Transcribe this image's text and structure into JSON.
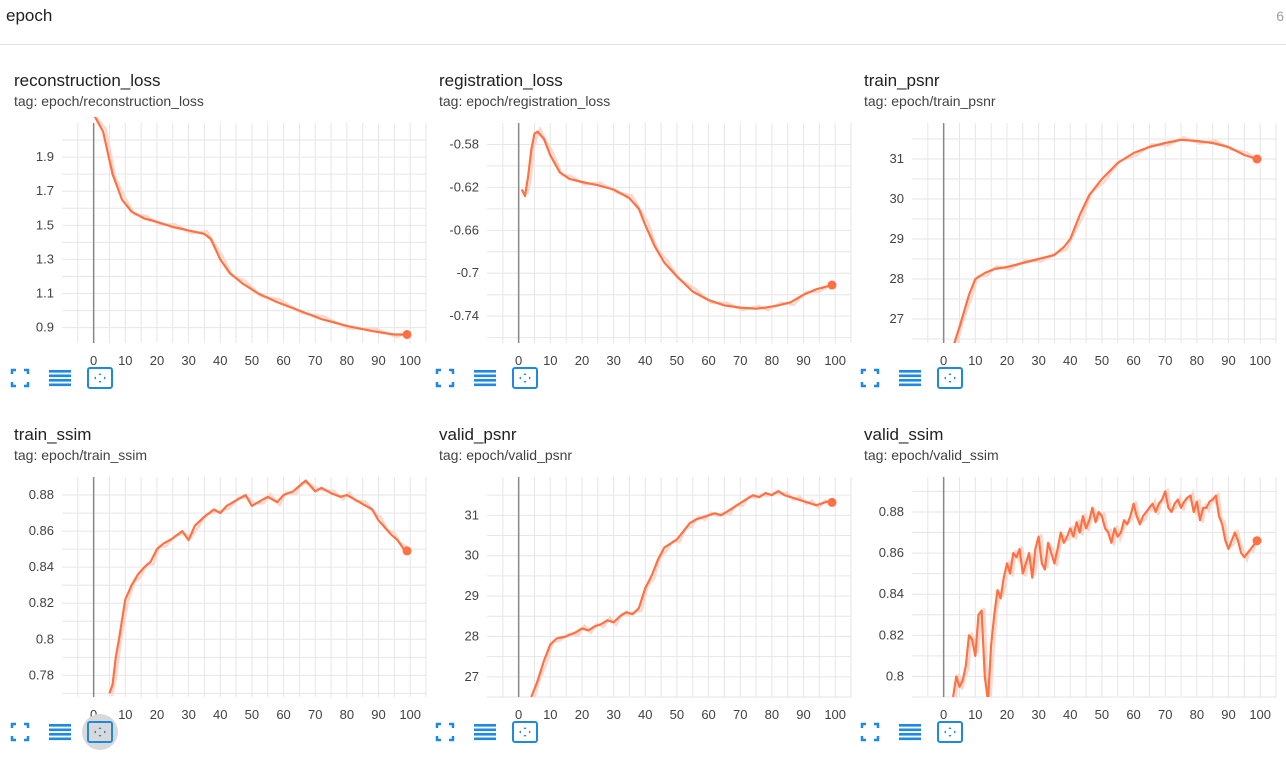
{
  "header": {
    "title": "epoch",
    "count": "6"
  },
  "colors": {
    "line": "#ff7043",
    "smoothed_faint": "#fbd7cc",
    "grid": "#e6e6e6",
    "axis": "#888888",
    "toolbar_icon": "#1e88e5"
  },
  "toolbar": {
    "icons": [
      "fit-to-screen-icon",
      "toggle-log-scale-icon",
      "fit-domain-icon"
    ]
  },
  "cards": [
    {
      "title": "reconstruction_loss",
      "tag": "tag: epoch/reconstruction_loss"
    },
    {
      "title": "registration_loss",
      "tag": "tag: epoch/registration_loss"
    },
    {
      "title": "train_psnr",
      "tag": "tag: epoch/train_psnr"
    },
    {
      "title": "train_ssim",
      "tag": "tag: epoch/train_ssim"
    },
    {
      "title": "valid_psnr",
      "tag": "tag: epoch/valid_psnr"
    },
    {
      "title": "valid_ssim",
      "tag": "tag: epoch/valid_ssim"
    }
  ],
  "chart_data": [
    {
      "type": "line",
      "title": "reconstruction_loss",
      "xlim": [
        -10,
        105
      ],
      "ylim": [
        0.81,
        2.1
      ],
      "xticks": [
        "0",
        "10",
        "20",
        "30",
        "40",
        "50",
        "60",
        "70",
        "80",
        "90",
        "100"
      ],
      "yticks": [
        "0.9",
        "1.1",
        "1.3",
        "1.5",
        "1.7",
        "1.9"
      ],
      "yvals": [
        0.9,
        1.1,
        1.3,
        1.5,
        1.7,
        1.9
      ],
      "series": [
        {
          "x": [
            0,
            3,
            6,
            9,
            12,
            16,
            20,
            25,
            30,
            35,
            37,
            40,
            43,
            47,
            52,
            58,
            65,
            72,
            80,
            88,
            95,
            99
          ],
          "y": [
            2.15,
            2.05,
            1.8,
            1.65,
            1.58,
            1.54,
            1.52,
            1.49,
            1.47,
            1.45,
            1.42,
            1.3,
            1.22,
            1.16,
            1.1,
            1.05,
            1.0,
            0.95,
            0.91,
            0.88,
            0.86,
            0.86
          ]
        }
      ]
    },
    {
      "type": "line",
      "title": "registration_loss",
      "xlim": [
        -10,
        105
      ],
      "ylim": [
        -0.765,
        -0.56
      ],
      "xticks": [
        "0",
        "10",
        "20",
        "30",
        "40",
        "50",
        "60",
        "70",
        "80",
        "90",
        "100"
      ],
      "yticks": [
        "-0.58",
        "-0.62",
        "-0.66",
        "-0.7",
        "-0.74"
      ],
      "yvals": [
        -0.58,
        -0.62,
        -0.66,
        -0.7,
        -0.74
      ],
      "series": [
        {
          "x": [
            1,
            2,
            3,
            4,
            5,
            6,
            8,
            10,
            13,
            16,
            20,
            25,
            30,
            35,
            38,
            40,
            43,
            46,
            50,
            55,
            60,
            65,
            70,
            75,
            78,
            82,
            86,
            90,
            94,
            99
          ],
          "y": [
            -0.622,
            -0.628,
            -0.61,
            -0.585,
            -0.57,
            -0.568,
            -0.575,
            -0.59,
            -0.606,
            -0.612,
            -0.615,
            -0.618,
            -0.622,
            -0.63,
            -0.64,
            -0.655,
            -0.675,
            -0.69,
            -0.703,
            -0.717,
            -0.725,
            -0.73,
            -0.732,
            -0.733,
            -0.732,
            -0.73,
            -0.727,
            -0.72,
            -0.715,
            -0.711
          ]
        }
      ]
    },
    {
      "type": "line",
      "title": "train_psnr",
      "xlim": [
        -10,
        105
      ],
      "ylim": [
        26.4,
        31.9
      ],
      "xticks": [
        "0",
        "10",
        "20",
        "30",
        "40",
        "50",
        "60",
        "70",
        "80",
        "90",
        "100"
      ],
      "yticks": [
        "31",
        "30",
        "29",
        "28",
        "27"
      ],
      "yvals": [
        31,
        30,
        29,
        28,
        27
      ],
      "series": [
        {
          "x": [
            3,
            5,
            8,
            10,
            13,
            16,
            20,
            25,
            30,
            35,
            38,
            40,
            43,
            46,
            50,
            55,
            60,
            65,
            70,
            75,
            80,
            85,
            90,
            95,
            99
          ],
          "y": [
            26.3,
            26.8,
            27.6,
            28.0,
            28.15,
            28.25,
            28.3,
            28.4,
            28.5,
            28.6,
            28.8,
            29.0,
            29.6,
            30.1,
            30.5,
            30.9,
            31.15,
            31.3,
            31.4,
            31.48,
            31.45,
            31.4,
            31.3,
            31.1,
            31.0
          ]
        }
      ]
    },
    {
      "type": "line",
      "title": "train_ssim",
      "xlim": [
        -10,
        105
      ],
      "ylim": [
        0.768,
        0.89
      ],
      "xticks": [
        "0",
        "10",
        "20",
        "30",
        "40",
        "50",
        "60",
        "70",
        "80",
        "90",
        "100"
      ],
      "yticks": [
        "0.88",
        "0.86",
        "0.84",
        "0.82",
        "0.8",
        "0.78"
      ],
      "yvals": [
        0.88,
        0.86,
        0.84,
        0.82,
        0.8,
        0.78
      ],
      "series": [
        {
          "x": [
            5,
            6,
            7,
            8,
            10,
            12,
            14,
            16,
            18,
            20,
            22,
            25,
            28,
            30,
            32,
            35,
            38,
            40,
            42,
            45,
            48,
            50,
            53,
            55,
            58,
            60,
            63,
            65,
            67,
            70,
            72,
            75,
            78,
            80,
            82,
            85,
            88,
            90,
            92,
            94,
            96,
            98,
            99
          ],
          "y": [
            0.77,
            0.775,
            0.79,
            0.8,
            0.822,
            0.83,
            0.836,
            0.84,
            0.843,
            0.85,
            0.853,
            0.856,
            0.86,
            0.855,
            0.863,
            0.868,
            0.872,
            0.87,
            0.874,
            0.877,
            0.88,
            0.874,
            0.877,
            0.879,
            0.876,
            0.88,
            0.882,
            0.885,
            0.888,
            0.882,
            0.884,
            0.881,
            0.879,
            0.88,
            0.878,
            0.875,
            0.872,
            0.866,
            0.862,
            0.858,
            0.855,
            0.85,
            0.849
          ]
        }
      ]
    },
    {
      "type": "line",
      "title": "valid_psnr",
      "xlim": [
        -10,
        105
      ],
      "ylim": [
        26.5,
        31.95
      ],
      "xticks": [
        "0",
        "10",
        "20",
        "30",
        "40",
        "50",
        "60",
        "70",
        "80",
        "90",
        "100"
      ],
      "yticks": [
        "31",
        "30",
        "29",
        "28",
        "27"
      ],
      "yvals": [
        31,
        30,
        29,
        28,
        27
      ],
      "series": [
        {
          "x": [
            4,
            6,
            8,
            10,
            12,
            15,
            18,
            20,
            22,
            24,
            26,
            28,
            30,
            32,
            34,
            36,
            38,
            40,
            42,
            44,
            46,
            48,
            50,
            52,
            54,
            56,
            58,
            60,
            62,
            64,
            66,
            68,
            70,
            72,
            74,
            76,
            78,
            80,
            82,
            84,
            86,
            88,
            90,
            92,
            94,
            96,
            98,
            99
          ],
          "y": [
            26.5,
            26.9,
            27.4,
            27.8,
            27.95,
            28.0,
            28.1,
            28.2,
            28.15,
            28.25,
            28.3,
            28.4,
            28.35,
            28.5,
            28.6,
            28.55,
            28.7,
            29.2,
            29.5,
            29.9,
            30.2,
            30.3,
            30.4,
            30.6,
            30.8,
            30.9,
            30.95,
            31.0,
            31.05,
            31.0,
            31.1,
            31.2,
            31.3,
            31.4,
            31.5,
            31.45,
            31.55,
            31.5,
            31.6,
            31.5,
            31.45,
            31.4,
            31.35,
            31.3,
            31.25,
            31.3,
            31.35,
            31.32
          ]
        }
      ]
    },
    {
      "type": "line",
      "title": "valid_ssim",
      "xlim": [
        -10,
        105
      ],
      "ylim": [
        0.79,
        0.897
      ],
      "xticks": [
        "0",
        "10",
        "20",
        "30",
        "40",
        "50",
        "60",
        "70",
        "80",
        "90",
        "100"
      ],
      "yticks": [
        "0.88",
        "0.86",
        "0.84",
        "0.82",
        "0.8"
      ],
      "yvals": [
        0.88,
        0.86,
        0.84,
        0.82,
        0.8
      ],
      "series": [
        {
          "x": [
            3,
            4,
            5,
            6,
            7,
            8,
            9,
            10,
            11,
            12,
            13,
            14,
            15,
            16,
            17,
            18,
            19,
            20,
            21,
            22,
            23,
            24,
            25,
            26,
            27,
            28,
            29,
            30,
            31,
            32,
            33,
            34,
            35,
            36,
            37,
            38,
            39,
            40,
            41,
            42,
            43,
            44,
            45,
            46,
            47,
            48,
            49,
            50,
            51,
            52,
            53,
            54,
            55,
            56,
            57,
            58,
            59,
            60,
            61,
            62,
            63,
            64,
            65,
            66,
            67,
            68,
            69,
            70,
            71,
            72,
            73,
            74,
            75,
            76,
            77,
            78,
            79,
            80,
            81,
            82,
            83,
            84,
            85,
            86,
            87,
            88,
            89,
            90,
            91,
            92,
            93,
            94,
            95,
            96,
            97,
            98,
            99
          ],
          "y": [
            0.79,
            0.8,
            0.795,
            0.798,
            0.805,
            0.82,
            0.818,
            0.81,
            0.83,
            0.832,
            0.8,
            0.788,
            0.815,
            0.83,
            0.842,
            0.838,
            0.848,
            0.855,
            0.85,
            0.86,
            0.858,
            0.862,
            0.85,
            0.855,
            0.86,
            0.848,
            0.862,
            0.868,
            0.855,
            0.852,
            0.865,
            0.86,
            0.855,
            0.862,
            0.87,
            0.865,
            0.868,
            0.872,
            0.868,
            0.875,
            0.87,
            0.878,
            0.872,
            0.876,
            0.882,
            0.875,
            0.88,
            0.878,
            0.872,
            0.87,
            0.865,
            0.872,
            0.868,
            0.87,
            0.876,
            0.874,
            0.878,
            0.884,
            0.878,
            0.874,
            0.878,
            0.88,
            0.882,
            0.884,
            0.88,
            0.884,
            0.886,
            0.89,
            0.882,
            0.88,
            0.884,
            0.886,
            0.882,
            0.885,
            0.887,
            0.888,
            0.88,
            0.885,
            0.876,
            0.882,
            0.882,
            0.885,
            0.886,
            0.888,
            0.878,
            0.874,
            0.866,
            0.862,
            0.866,
            0.87,
            0.866,
            0.86,
            0.858,
            0.86,
            0.862,
            0.864,
            0.866
          ]
        }
      ]
    }
  ]
}
